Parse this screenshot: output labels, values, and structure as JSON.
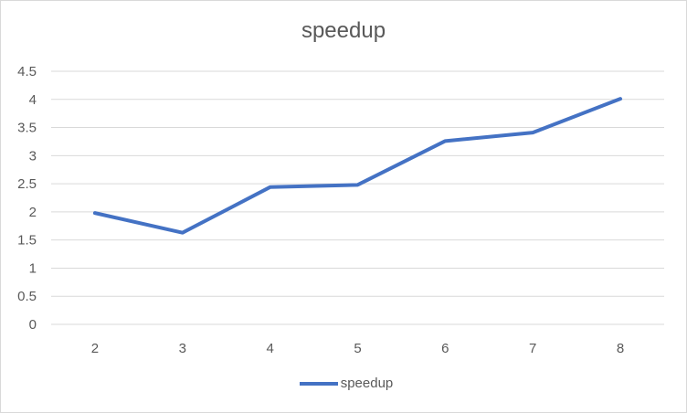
{
  "chart_data": {
    "type": "line",
    "title": "speedup",
    "xlabel": "",
    "ylabel": "",
    "categories": [
      "2",
      "3",
      "4",
      "5",
      "6",
      "7",
      "8"
    ],
    "series": [
      {
        "name": "speedup",
        "values": [
          1.98,
          1.63,
          2.44,
          2.48,
          3.26,
          3.41,
          4.01
        ],
        "color": "#4472C4"
      }
    ],
    "ylim": [
      0,
      4.5
    ],
    "yticks": [
      "0",
      "0.5",
      "1",
      "1.5",
      "2",
      "2.5",
      "3",
      "3.5",
      "4",
      "4.5"
    ],
    "grid": true,
    "legend": "bottom"
  }
}
